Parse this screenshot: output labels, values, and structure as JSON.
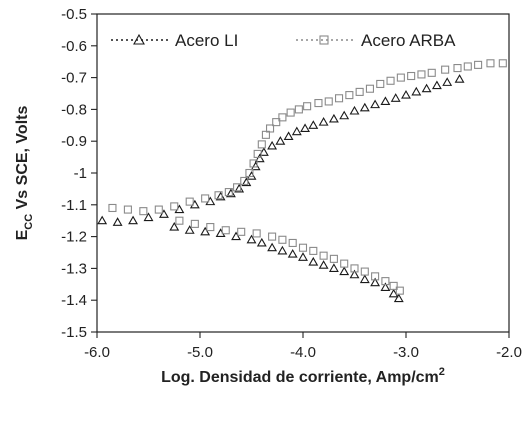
{
  "chart_data": {
    "type": "scatter",
    "xlabel": "Log. Densidad de corriente, Amp/cm",
    "xlabel_sup": "2",
    "ylabel_pre": "E",
    "ylabel_sub": "CC",
    "ylabel_post": " Vs SCE, Volts",
    "xlim": [
      -6.0,
      -2.0
    ],
    "ylim": [
      -1.5,
      -0.5
    ],
    "x_ticks": [
      -6.0,
      -5.0,
      -4.0,
      -3.0,
      -2.0
    ],
    "x_tick_labels": [
      "-6.0",
      "-5.0",
      "-4.0",
      "-3.0",
      "-2.0"
    ],
    "y_ticks": [
      -0.5,
      -0.6,
      -0.7,
      -0.8,
      -0.9,
      -1.0,
      -1.1,
      -1.2,
      -1.3,
      -1.4,
      -1.5
    ],
    "y_tick_labels": [
      "-0.5",
      "-0.6",
      "-0.7",
      "-0.8",
      "-0.9",
      "-1",
      "-1.1",
      "-1.2",
      "-1.3",
      "-1.4",
      "-1.5"
    ],
    "grid": false,
    "legend_position": "top",
    "series": [
      {
        "name": "Acero LI",
        "marker": "triangle",
        "color": "#1a1a1a",
        "points": [
          [
            -5.95,
            -1.15
          ],
          [
            -5.8,
            -1.155
          ],
          [
            -5.65,
            -1.15
          ],
          [
            -5.5,
            -1.14
          ],
          [
            -5.35,
            -1.13
          ],
          [
            -5.2,
            -1.115
          ],
          [
            -5.05,
            -1.1
          ],
          [
            -4.9,
            -1.09
          ],
          [
            -4.8,
            -1.075
          ],
          [
            -4.7,
            -1.065
          ],
          [
            -4.62,
            -1.05
          ],
          [
            -4.55,
            -1.03
          ],
          [
            -4.5,
            -1.01
          ],
          [
            -4.46,
            -0.98
          ],
          [
            -4.42,
            -0.955
          ],
          [
            -4.38,
            -0.935
          ],
          [
            -4.3,
            -0.915
          ],
          [
            -4.22,
            -0.9
          ],
          [
            -4.14,
            -0.885
          ],
          [
            -4.06,
            -0.87
          ],
          [
            -3.98,
            -0.86
          ],
          [
            -3.9,
            -0.85
          ],
          [
            -3.8,
            -0.84
          ],
          [
            -3.7,
            -0.83
          ],
          [
            -3.6,
            -0.82
          ],
          [
            -3.5,
            -0.805
          ],
          [
            -3.4,
            -0.795
          ],
          [
            -3.3,
            -0.785
          ],
          [
            -3.2,
            -0.775
          ],
          [
            -3.1,
            -0.765
          ],
          [
            -3.0,
            -0.755
          ],
          [
            -2.9,
            -0.745
          ],
          [
            -2.8,
            -0.735
          ],
          [
            -2.7,
            -0.725
          ],
          [
            -2.6,
            -0.715
          ],
          [
            -2.48,
            -0.705
          ],
          [
            -5.25,
            -1.17
          ],
          [
            -5.1,
            -1.18
          ],
          [
            -4.95,
            -1.185
          ],
          [
            -4.8,
            -1.19
          ],
          [
            -4.65,
            -1.2
          ],
          [
            -4.5,
            -1.21
          ],
          [
            -4.4,
            -1.22
          ],
          [
            -4.3,
            -1.235
          ],
          [
            -4.2,
            -1.245
          ],
          [
            -4.1,
            -1.255
          ],
          [
            -4.0,
            -1.265
          ],
          [
            -3.9,
            -1.28
          ],
          [
            -3.8,
            -1.29
          ],
          [
            -3.7,
            -1.3
          ],
          [
            -3.6,
            -1.31
          ],
          [
            -3.5,
            -1.32
          ],
          [
            -3.4,
            -1.335
          ],
          [
            -3.3,
            -1.345
          ],
          [
            -3.2,
            -1.36
          ],
          [
            -3.12,
            -1.38
          ],
          [
            -3.07,
            -1.395
          ]
        ]
      },
      {
        "name": "Acero ARBA",
        "marker": "square",
        "color": "#8a8a8a",
        "points": [
          [
            -5.85,
            -1.11
          ],
          [
            -5.7,
            -1.115
          ],
          [
            -5.55,
            -1.12
          ],
          [
            -5.4,
            -1.115
          ],
          [
            -5.25,
            -1.105
          ],
          [
            -5.1,
            -1.09
          ],
          [
            -4.95,
            -1.08
          ],
          [
            -4.82,
            -1.07
          ],
          [
            -4.72,
            -1.06
          ],
          [
            -4.64,
            -1.045
          ],
          [
            -4.57,
            -1.025
          ],
          [
            -4.52,
            -1.0
          ],
          [
            -4.48,
            -0.97
          ],
          [
            -4.44,
            -0.94
          ],
          [
            -4.4,
            -0.91
          ],
          [
            -4.36,
            -0.88
          ],
          [
            -4.32,
            -0.86
          ],
          [
            -4.26,
            -0.84
          ],
          [
            -4.2,
            -0.825
          ],
          [
            -4.12,
            -0.81
          ],
          [
            -4.04,
            -0.8
          ],
          [
            -3.96,
            -0.79
          ],
          [
            -3.85,
            -0.78
          ],
          [
            -3.75,
            -0.775
          ],
          [
            -3.65,
            -0.765
          ],
          [
            -3.55,
            -0.755
          ],
          [
            -3.45,
            -0.745
          ],
          [
            -3.35,
            -0.735
          ],
          [
            -3.25,
            -0.72
          ],
          [
            -3.15,
            -0.71
          ],
          [
            -3.05,
            -0.7
          ],
          [
            -2.95,
            -0.695
          ],
          [
            -2.85,
            -0.69
          ],
          [
            -2.75,
            -0.685
          ],
          [
            -2.62,
            -0.675
          ],
          [
            -2.5,
            -0.67
          ],
          [
            -2.4,
            -0.665
          ],
          [
            -2.3,
            -0.66
          ],
          [
            -2.18,
            -0.655
          ],
          [
            -2.06,
            -0.655
          ],
          [
            -5.2,
            -1.15
          ],
          [
            -5.05,
            -1.16
          ],
          [
            -4.9,
            -1.17
          ],
          [
            -4.75,
            -1.18
          ],
          [
            -4.6,
            -1.185
          ],
          [
            -4.45,
            -1.19
          ],
          [
            -4.3,
            -1.2
          ],
          [
            -4.2,
            -1.21
          ],
          [
            -4.1,
            -1.22
          ],
          [
            -4.0,
            -1.235
          ],
          [
            -3.9,
            -1.245
          ],
          [
            -3.8,
            -1.26
          ],
          [
            -3.7,
            -1.27
          ],
          [
            -3.6,
            -1.285
          ],
          [
            -3.5,
            -1.3
          ],
          [
            -3.4,
            -1.31
          ],
          [
            -3.3,
            -1.325
          ],
          [
            -3.2,
            -1.34
          ],
          [
            -3.12,
            -1.355
          ],
          [
            -3.06,
            -1.37
          ]
        ]
      }
    ]
  }
}
